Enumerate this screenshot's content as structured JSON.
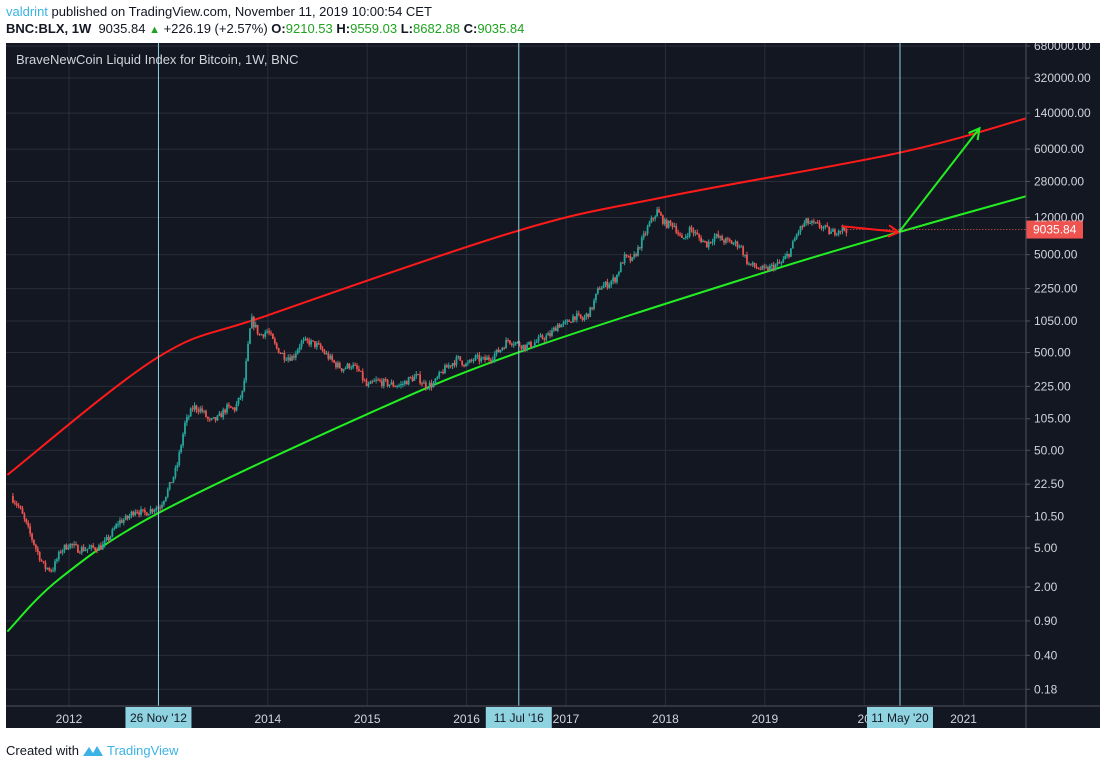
{
  "header": {
    "user": "valdrint",
    "published": "published on TradingView.com, November 11, 2019 10:00:54 CET",
    "symbol": "BNC:BLX, 1W",
    "last": "9035.84",
    "change": "+226.19 (+2.57%)",
    "o_label": "O:",
    "o": "9210.53",
    "h_label": "H:",
    "h": "9559.03",
    "l_label": "L:",
    "l": "8682.88",
    "c_label": "C:",
    "c": "9035.84"
  },
  "footer": {
    "created_with": "Created with",
    "brand": "TradingView"
  },
  "colors": {
    "background": "#131722",
    "grid": "#2a2e39",
    "up": "#26a69a",
    "down": "#ef5350",
    "resistance": "#ff1a1a",
    "support": "#22ee22",
    "marker": "#8fd3e0"
  },
  "chart_data": {
    "type": "candlestick",
    "title": "BraveNewCoin Liquid Index for Bitcoin, 1W, BNC",
    "scale": "log",
    "ylim": [
      0.18,
      680000
    ],
    "grid": true,
    "y_ticks": [
      "680000.00",
      "320000.00",
      "140000.00",
      "60000.00",
      "28000.00",
      "12000.00",
      "5000.00",
      "2250.00",
      "1050.00",
      "500.00",
      "225.00",
      "105.00",
      "50.00",
      "22.50",
      "10.50",
      "5.00",
      "2.00",
      "0.90",
      "0.40",
      "0.18"
    ],
    "x_ticks": [
      {
        "label": "2012",
        "year": 2012
      },
      {
        "label": "2014",
        "year": 2014
      },
      {
        "label": "2015",
        "year": 2015
      },
      {
        "label": "2016",
        "year": 2016
      },
      {
        "label": "2017",
        "year": 2017
      },
      {
        "label": "2018",
        "year": 2018
      },
      {
        "label": "2019",
        "year": 2019
      },
      {
        "label": "20",
        "year": 2020
      },
      {
        "label": "2021",
        "year": 2021
      }
    ],
    "markers": [
      {
        "label": "26 Nov '12",
        "year": 2012.9
      },
      {
        "label": "11 Jul '16",
        "year": 2016.525
      },
      {
        "label": "11 May '20",
        "year": 2020.36
      }
    ],
    "last_price": {
      "label": "9035.84",
      "value": 9035.84
    },
    "monthly_close_start": "2011-06",
    "monthly_close": [
      17,
      13,
      8,
      5,
      3.2,
      3,
      4.7,
      5.5,
      4.9,
      4.9,
      5,
      5.2,
      6.7,
      9.3,
      10,
      12.4,
      11.2,
      12.5,
      13.5,
      20,
      33,
      93,
      139,
      129,
      97,
      106,
      135,
      133,
      198,
      1100,
      750,
      830,
      560,
      460,
      445,
      630,
      640,
      585,
      480,
      390,
      340,
      375,
      320,
      220,
      255,
      245,
      235,
      230,
      263,
      285,
      230,
      236,
      315,
      377,
      430,
      370,
      437,
      416,
      448,
      530,
      670,
      625,
      575,
      610,
      700,
      745,
      960,
      970,
      1190,
      1080,
      1350,
      2300,
      2500,
      2870,
      4700,
      4340,
      6450,
      10000,
      14000,
      10200,
      10300,
      6900,
      9250,
      7500,
      6400,
      7750,
      7000,
      6600,
      6300,
      4000,
      3700,
      3450,
      3800,
      4100,
      5300,
      8600,
      10800,
      10100,
      9600,
      8300,
      9150,
      9035
    ],
    "resistance_line": [
      [
        2011.38,
        28
      ],
      [
        2012.9,
        450
      ],
      [
        2014.0,
        1200
      ],
      [
        2016.52,
        8800
      ],
      [
        2018.0,
        19500
      ],
      [
        2020.35,
        55000
      ],
      [
        2021.63,
        124000
      ]
    ],
    "support_line": [
      [
        2011.38,
        0.7
      ],
      [
        2011.91,
        2.45
      ],
      [
        2012.9,
        11.4
      ],
      [
        2015.0,
        117
      ],
      [
        2016.52,
        500
      ],
      [
        2019.0,
        3300
      ],
      [
        2020.35,
        8500
      ],
      [
        2021.63,
        19800
      ]
    ],
    "projection_arrow_down": [
      [
        2019.77,
        9800
      ],
      [
        2020.35,
        8500
      ]
    ],
    "projection_arrow_up": [
      [
        2020.35,
        8500
      ],
      [
        2021.16,
        98000
      ]
    ]
  }
}
